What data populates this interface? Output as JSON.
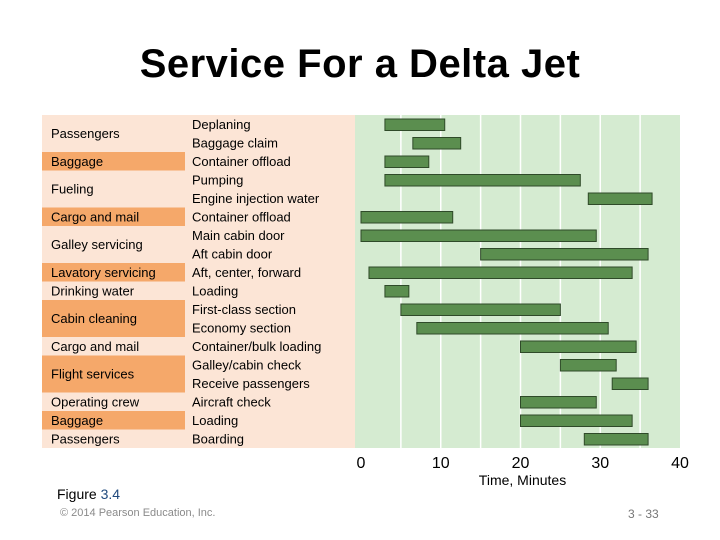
{
  "title": "Service For a Delta Jet",
  "figure": {
    "prefix": "Figure ",
    "number": "3.4"
  },
  "copyright": "© 2014 Pearson Education, Inc.",
  "page_number": "3 - 33",
  "colors": {
    "category_band_light": "#fce5d6",
    "category_band_dark": "#f5a86a",
    "activity_panel": "#fce5d6",
    "chart_panel": "#d5ebd1",
    "grid_line": "#ffffff",
    "bar_fill": "#5b8e4f",
    "bar_stroke": "#2f4a29",
    "figure_number": "#1f497d"
  },
  "chart_data": {
    "type": "gantt",
    "title": "Service For a Delta Jet",
    "xlabel": "Time, Minutes",
    "xlim": [
      0,
      40
    ],
    "x_ticks": [
      0,
      10,
      20,
      30,
      40
    ],
    "grid": true,
    "categories": [
      {
        "label": "Passengers",
        "activities": 2
      },
      {
        "label": "Baggage",
        "activities": 1
      },
      {
        "label": "Fueling",
        "activities": 2
      },
      {
        "label": "Cargo and mail",
        "activities": 1
      },
      {
        "label": "Galley servicing",
        "activities": 2
      },
      {
        "label": "Lavatory servicing",
        "activities": 1
      },
      {
        "label": "Drinking water",
        "activities": 1
      },
      {
        "label": "Cabin cleaning",
        "activities": 2
      },
      {
        "label": "Cargo and mail",
        "activities": 1
      },
      {
        "label": "Flight services",
        "activities": 2
      },
      {
        "label": "Operating crew",
        "activities": 1
      },
      {
        "label": "Baggage",
        "activities": 1
      },
      {
        "label": "Passengers",
        "activities": 1
      }
    ],
    "tasks": [
      {
        "activity": "Deplaning",
        "start": 3.0,
        "end": 10.5
      },
      {
        "activity": "Baggage claim",
        "start": 6.5,
        "end": 12.5
      },
      {
        "activity": "Container offload",
        "start": 3.0,
        "end": 8.5
      },
      {
        "activity": "Pumping",
        "start": 3.0,
        "end": 27.5
      },
      {
        "activity": "Engine injection water",
        "start": 28.5,
        "end": 36.5
      },
      {
        "activity": "Container offload",
        "start": 0.0,
        "end": 11.5
      },
      {
        "activity": "Main cabin door",
        "start": 0.0,
        "end": 29.5
      },
      {
        "activity": "Aft cabin door",
        "start": 15.0,
        "end": 36.0
      },
      {
        "activity": "Aft, center, forward",
        "start": 1.0,
        "end": 34.0
      },
      {
        "activity": "Loading",
        "start": 3.0,
        "end": 6.0
      },
      {
        "activity": "First-class section",
        "start": 5.0,
        "end": 25.0
      },
      {
        "activity": "Economy section",
        "start": 7.0,
        "end": 31.0
      },
      {
        "activity": "Container/bulk loading",
        "start": 20.0,
        "end": 34.5
      },
      {
        "activity": "Galley/cabin check",
        "start": 25.0,
        "end": 32.0
      },
      {
        "activity": "Receive passengers",
        "start": 31.5,
        "end": 36.0
      },
      {
        "activity": "Aircraft check",
        "start": 20.0,
        "end": 29.5
      },
      {
        "activity": "Loading",
        "start": 20.0,
        "end": 34.0
      },
      {
        "activity": "Boarding",
        "start": 28.0,
        "end": 36.0
      }
    ]
  }
}
